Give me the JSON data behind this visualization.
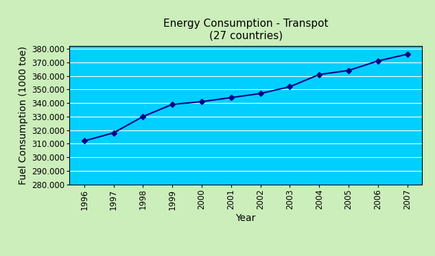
{
  "title_line1": "Energy Consumption - Transpot",
  "title_line2": "(27 countries)",
  "xlabel": "Year",
  "ylabel": "Fuel Consumption (1000 toe)",
  "years": [
    1996,
    1997,
    1998,
    1999,
    2000,
    2001,
    2002,
    2003,
    2004,
    2005,
    2006,
    2007
  ],
  "values": [
    312000,
    318000,
    330000,
    339000,
    341000,
    344000,
    347000,
    352000,
    361000,
    364000,
    371000,
    376000
  ],
  "ylim_min": 280000,
  "ylim_max": 382000,
  "ytick_step": 10000,
  "line_color": "#00008B",
  "marker": "D",
  "marker_size": 4,
  "marker_color": "#00008B",
  "plot_bg_color": "#00CFFF",
  "fig_bg_color": "#CCEEBB",
  "grid_color": "#FFFFFF",
  "title_fontsize": 11,
  "axis_label_fontsize": 10,
  "tick_label_fontsize": 8.5
}
